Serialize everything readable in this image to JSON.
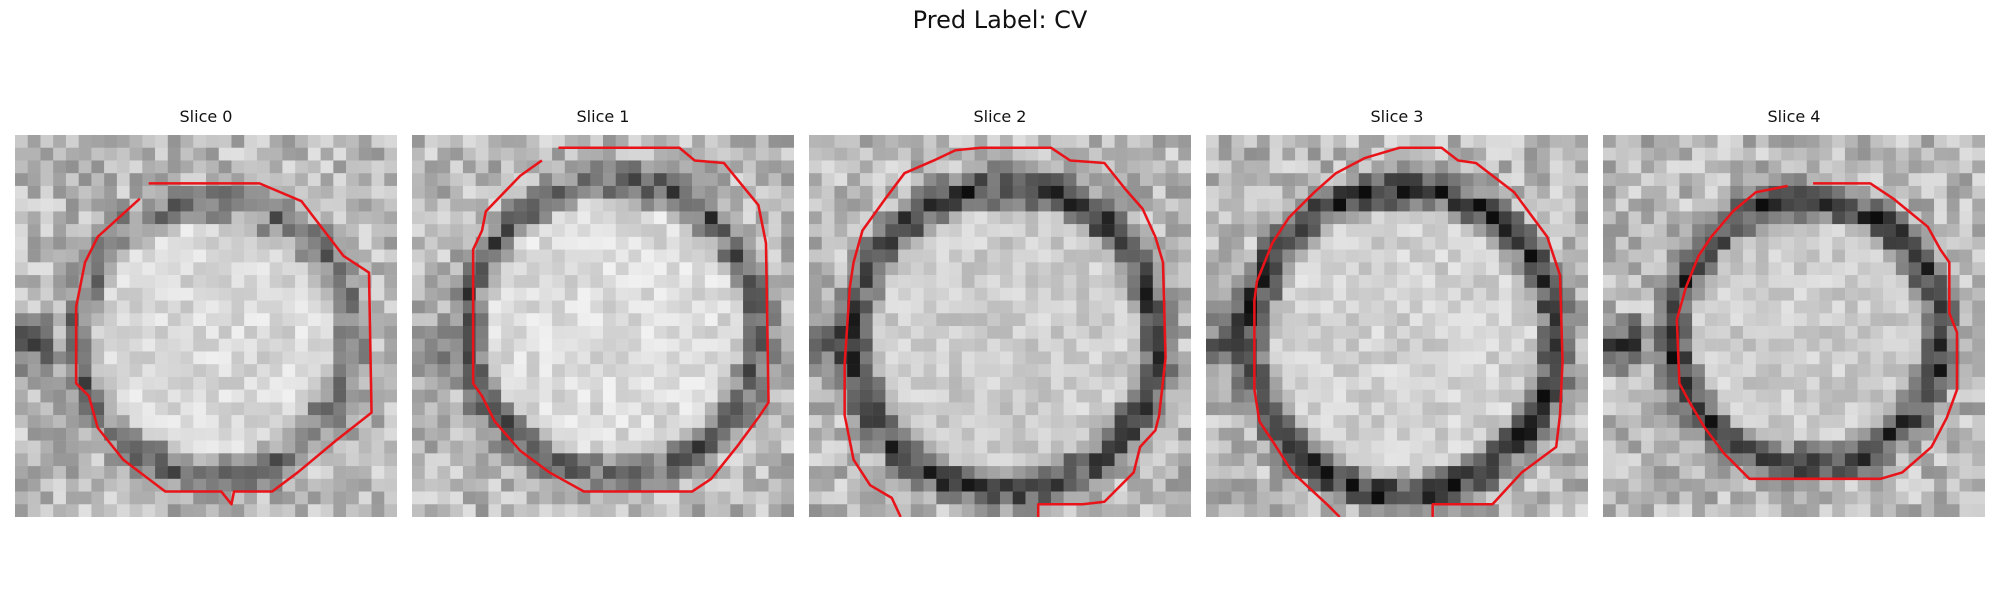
{
  "figure": {
    "title": "Pred Label: CV",
    "panels": [
      {
        "title": "Slice 0"
      },
      {
        "title": "Slice 1"
      },
      {
        "title": "Slice 2"
      },
      {
        "title": "Slice 3"
      },
      {
        "title": "Slice 4"
      }
    ]
  },
  "colors": {
    "contour": "#e8141a",
    "background": "#ffffff"
  }
}
